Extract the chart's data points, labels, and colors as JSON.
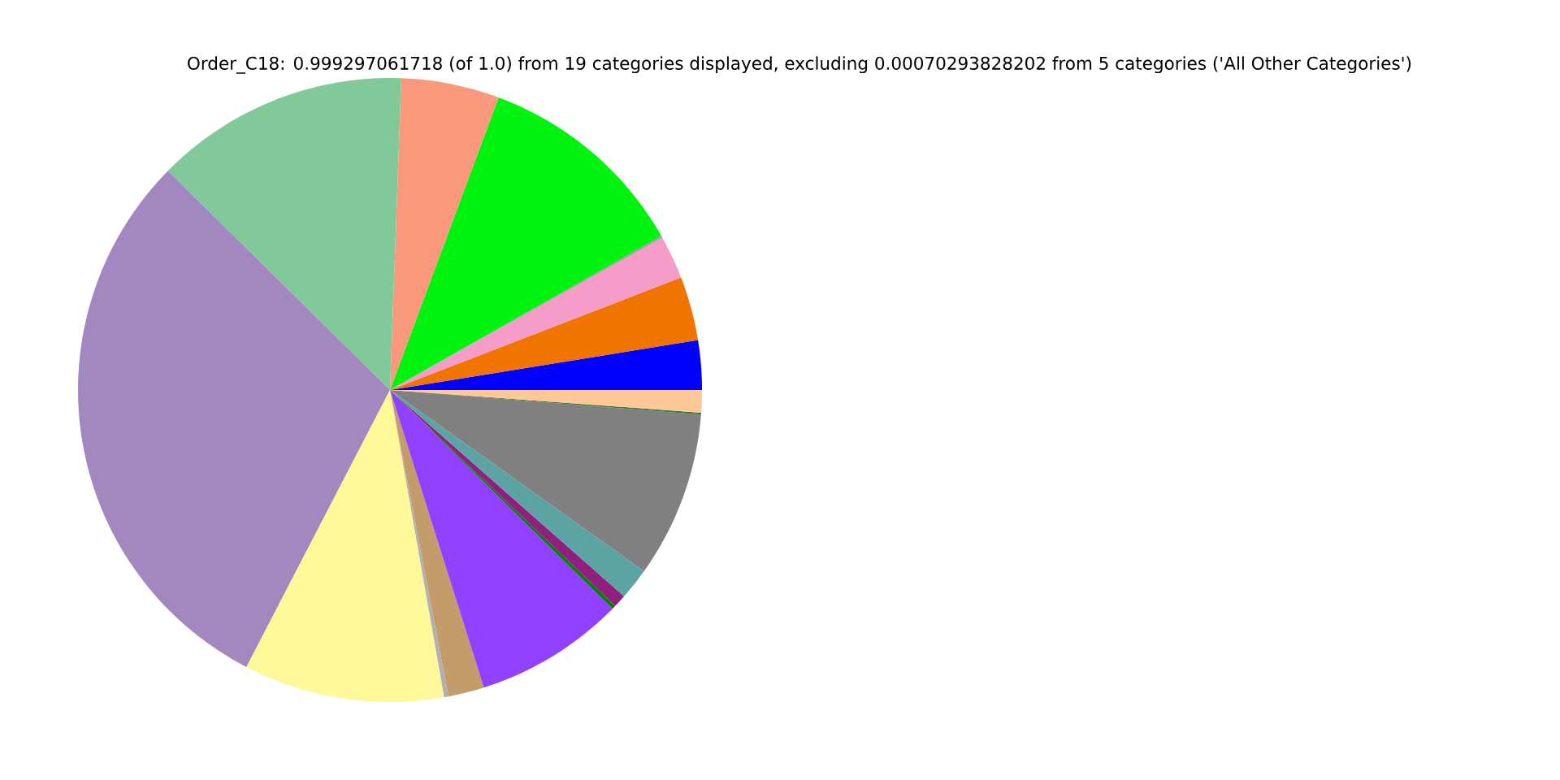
{
  "chart_data": {
    "type": "pie",
    "title": "Order_C18: 0.999297061718 (of 1.0) from 19 categories displayed, excluding 0.00070293828202 from 5 categories ('All Other Categories')",
    "categories": [
      null,
      null,
      null,
      null,
      null,
      null,
      null,
      null,
      null,
      null,
      null,
      null,
      null,
      null,
      null,
      null,
      null,
      null
    ],
    "values": [
      2.56,
      3.31,
      2.25,
      0.1,
      11.12,
      5.08,
      13.19,
      29.78,
      10.39,
      0.22,
      1.86,
      7.78,
      0.19,
      0.67,
      1.64,
      8.6,
      0.1,
      1.16
    ],
    "colors": [
      "#0000ff",
      "#f17300",
      "#f59cc8",
      "#a0a0a0",
      "#00f20f",
      "#f9987a",
      "#82c99a",
      "#a288bf",
      "#fef898",
      "#b0b0b0",
      "#c49c6c",
      "#9040ff",
      "#008000",
      "#902080",
      "#5ca3a3",
      "#808080",
      "#3a7a3a",
      "#ffc896"
    ]
  }
}
